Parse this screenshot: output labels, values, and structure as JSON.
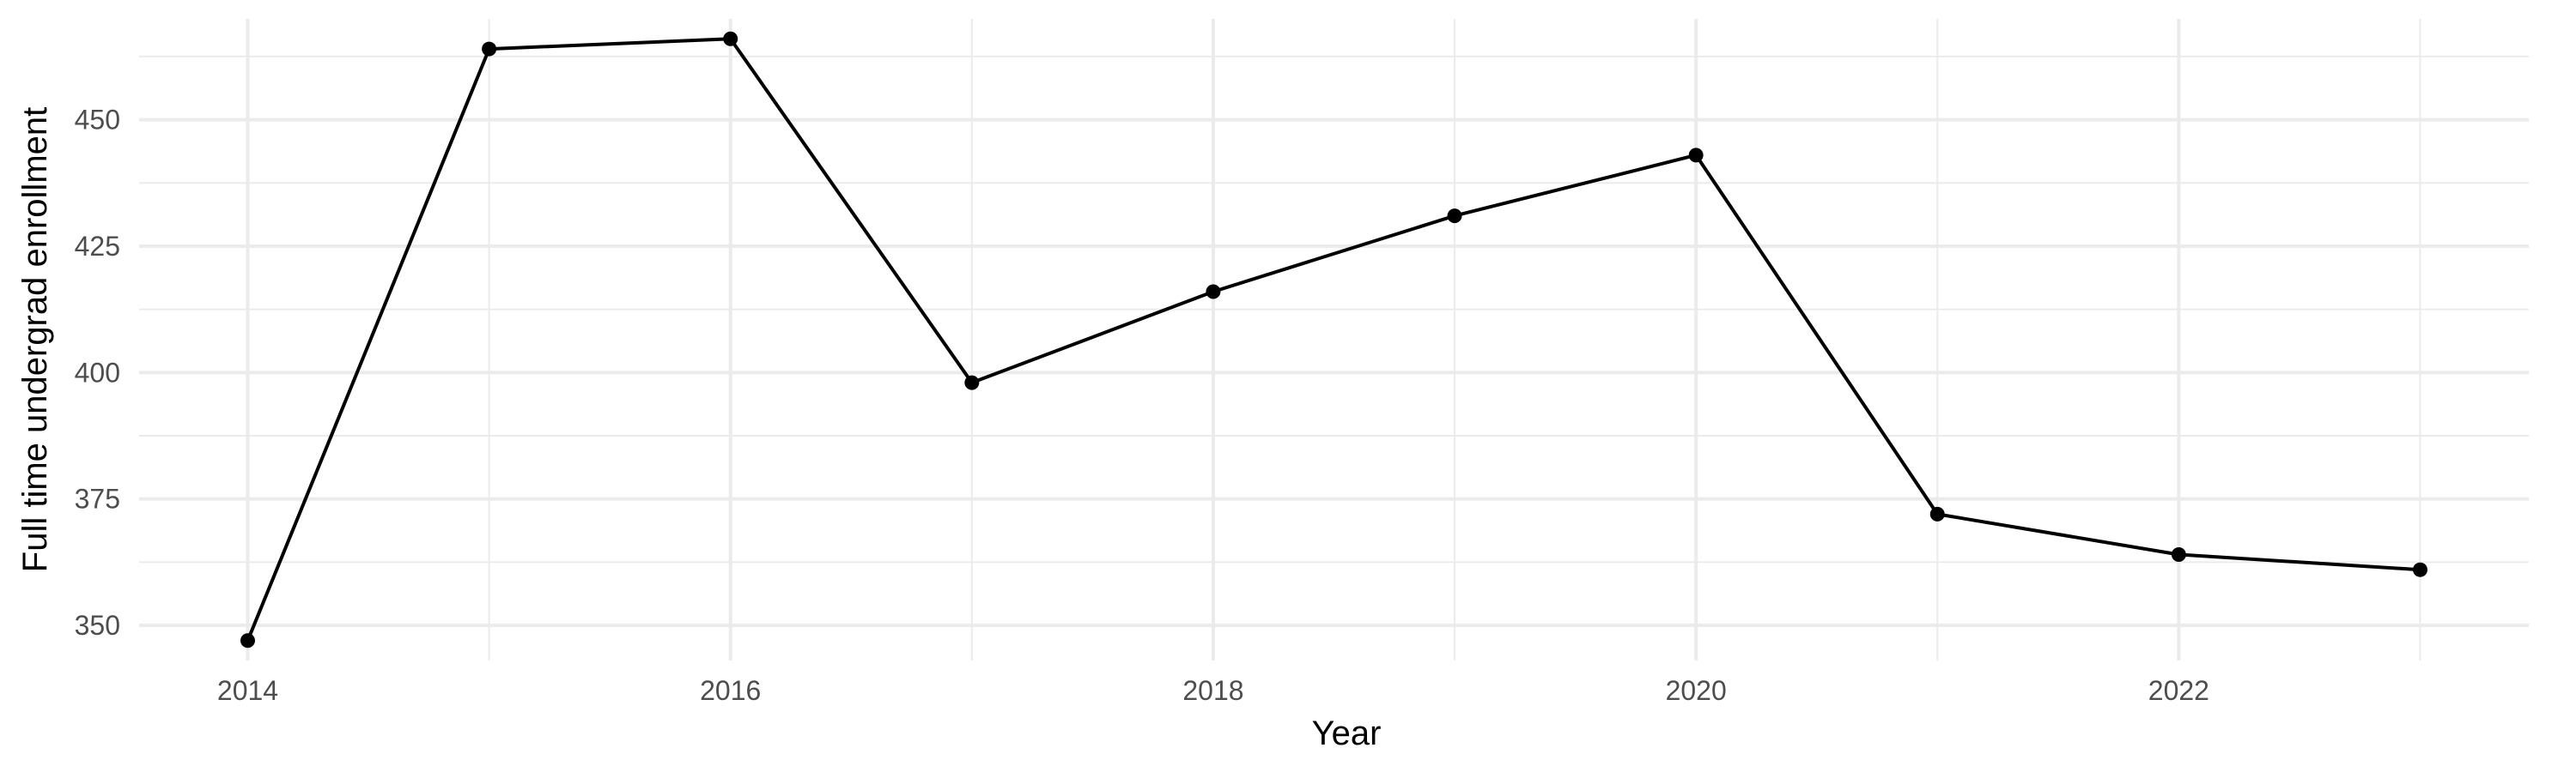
{
  "chart_data": {
    "type": "line",
    "title": "",
    "xlabel": "Year",
    "ylabel": "Full time undergrad enrollment",
    "x": [
      2014,
      2015,
      2016,
      2017,
      2018,
      2019,
      2020,
      2021,
      2022,
      2023
    ],
    "series": [
      {
        "values": [
          347,
          464,
          466,
          398,
          416,
          431,
          443,
          372,
          364,
          361
        ]
      }
    ],
    "xlim": [
      2013.55,
      2023.45
    ],
    "ylim": [
      343.05,
      469.95
    ],
    "x_ticks": [
      2014,
      2016,
      2018,
      2020,
      2022
    ],
    "x_tick_labels": [
      "2014",
      "2016",
      "2018",
      "2020",
      "2022"
    ],
    "y_ticks": [
      350,
      375,
      400,
      425,
      450
    ],
    "y_tick_labels": [
      "350",
      "375",
      "400",
      "425",
      "450"
    ],
    "grid": true,
    "colors": {
      "line": "#000000",
      "point": "#000000",
      "grid": "#ebebeb",
      "tick_text": "#4d4d4d"
    }
  }
}
